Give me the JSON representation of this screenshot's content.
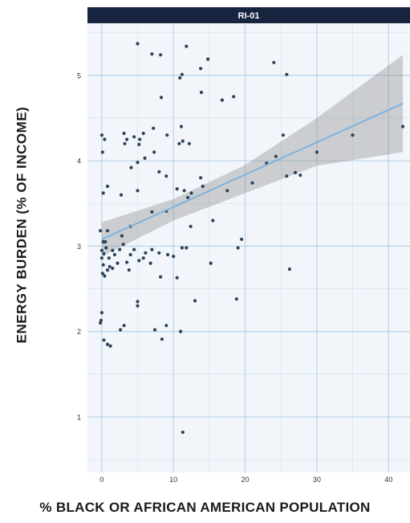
{
  "chart_data": {
    "type": "scatter",
    "facet_title": "RI-01",
    "xlabel": "% BLACK OR AFRICAN AMERICAN POPULATION",
    "ylabel": "ENERGY BURDEN (% OF INCOME)",
    "xlim": [
      -2,
      43
    ],
    "ylim": [
      0.35,
      5.6
    ],
    "x_ticks": [
      0,
      10,
      20,
      30,
      40
    ],
    "y_ticks": [
      1,
      2,
      3,
      4,
      5
    ],
    "grid": true,
    "points": [
      {
        "x": 5,
        "y": 5.37
      },
      {
        "x": 7,
        "y": 5.25
      },
      {
        "x": 8.2,
        "y": 5.24
      },
      {
        "x": 11.8,
        "y": 5.34
      },
      {
        "x": 14.8,
        "y": 5.19
      },
      {
        "x": 24,
        "y": 5.15
      },
      {
        "x": 13.8,
        "y": 5.08
      },
      {
        "x": 11.2,
        "y": 5.01
      },
      {
        "x": 10.9,
        "y": 4.97
      },
      {
        "x": 25.8,
        "y": 5.01
      },
      {
        "x": 13.9,
        "y": 4.8
      },
      {
        "x": 16.8,
        "y": 4.71
      },
      {
        "x": 18.4,
        "y": 4.75
      },
      {
        "x": 8.3,
        "y": 4.74
      },
      {
        "x": 0,
        "y": 4.3
      },
      {
        "x": 0.4,
        "y": 4.25
      },
      {
        "x": 0.1,
        "y": 4.1
      },
      {
        "x": 0.2,
        "y": 3.62
      },
      {
        "x": 0.8,
        "y": 3.7
      },
      {
        "x": 3.1,
        "y": 4.32
      },
      {
        "x": 3.5,
        "y": 4.25
      },
      {
        "x": 3.2,
        "y": 4.2
      },
      {
        "x": 4.5,
        "y": 4.28
      },
      {
        "x": 5.2,
        "y": 4.19
      },
      {
        "x": 5.3,
        "y": 4.25
      },
      {
        "x": 5.8,
        "y": 4.32
      },
      {
        "x": 7.2,
        "y": 4.38
      },
      {
        "x": 7.3,
        "y": 4.1
      },
      {
        "x": 9.1,
        "y": 4.3
      },
      {
        "x": 10.8,
        "y": 4.2
      },
      {
        "x": 11.3,
        "y": 4.23
      },
      {
        "x": 11.1,
        "y": 4.4
      },
      {
        "x": 12.2,
        "y": 4.2
      },
      {
        "x": 4.1,
        "y": 3.92
      },
      {
        "x": 5,
        "y": 3.98
      },
      {
        "x": 6,
        "y": 4.03
      },
      {
        "x": 8,
        "y": 3.87
      },
      {
        "x": 9,
        "y": 3.82
      },
      {
        "x": 13.8,
        "y": 3.8
      },
      {
        "x": 14.1,
        "y": 3.7
      },
      {
        "x": 10.5,
        "y": 3.67
      },
      {
        "x": 11.5,
        "y": 3.65
      },
      {
        "x": 12.5,
        "y": 3.62
      },
      {
        "x": 5,
        "y": 3.65
      },
      {
        "x": 2.7,
        "y": 3.6
      },
      {
        "x": 7,
        "y": 3.4
      },
      {
        "x": 9,
        "y": 3.41
      },
      {
        "x": 12,
        "y": 3.57
      },
      {
        "x": 17.5,
        "y": 3.65
      },
      {
        "x": 21,
        "y": 3.74
      },
      {
        "x": 23,
        "y": 3.97
      },
      {
        "x": 24.3,
        "y": 4.05
      },
      {
        "x": 25.3,
        "y": 4.3
      },
      {
        "x": 25.8,
        "y": 3.82
      },
      {
        "x": 27,
        "y": 3.86
      },
      {
        "x": 27.7,
        "y": 3.83
      },
      {
        "x": 30,
        "y": 4.1
      },
      {
        "x": 35,
        "y": 4.3
      },
      {
        "x": 42,
        "y": 4.4
      },
      {
        "x": 15.5,
        "y": 3.3
      },
      {
        "x": 26.2,
        "y": 2.73
      },
      {
        "x": 19.5,
        "y": 3.08
      },
      {
        "x": 19,
        "y": 2.98
      },
      {
        "x": 18.8,
        "y": 2.38
      },
      {
        "x": 15.2,
        "y": 2.8
      },
      {
        "x": 12.4,
        "y": 3.23
      },
      {
        "x": 13,
        "y": 2.36
      },
      {
        "x": 11.8,
        "y": 2.98
      },
      {
        "x": 11.2,
        "y": 2.98
      },
      {
        "x": 10,
        "y": 2.88
      },
      {
        "x": 10.5,
        "y": 2.63
      },
      {
        "x": 9.2,
        "y": 2.9
      },
      {
        "x": 8,
        "y": 2.92
      },
      {
        "x": 8.2,
        "y": 2.64
      },
      {
        "x": 7,
        "y": 2.96
      },
      {
        "x": 6.8,
        "y": 2.8
      },
      {
        "x": 6.1,
        "y": 2.92
      },
      {
        "x": 5.8,
        "y": 2.86
      },
      {
        "x": 5.2,
        "y": 2.83
      },
      {
        "x": 5,
        "y": 2.35
      },
      {
        "x": 5,
        "y": 2.3
      },
      {
        "x": 4.5,
        "y": 2.96
      },
      {
        "x": 4,
        "y": 2.9
      },
      {
        "x": 3.8,
        "y": 2.72
      },
      {
        "x": 3.5,
        "y": 2.81
      },
      {
        "x": 3,
        "y": 3.02
      },
      {
        "x": 2.8,
        "y": 3.12
      },
      {
        "x": 2.5,
        "y": 2.96
      },
      {
        "x": 2.2,
        "y": 2.8
      },
      {
        "x": 1.8,
        "y": 2.9
      },
      {
        "x": 1.5,
        "y": 2.74
      },
      {
        "x": 1.1,
        "y": 2.76
      },
      {
        "x": 1,
        "y": 2.86
      },
      {
        "x": 0.8,
        "y": 2.72
      },
      {
        "x": 0.8,
        "y": 3.18
      },
      {
        "x": 0.6,
        "y": 2.98
      },
      {
        "x": 0.5,
        "y": 3.05
      },
      {
        "x": 0.4,
        "y": 2.65
      },
      {
        "x": 0.3,
        "y": 2.91
      },
      {
        "x": 0.2,
        "y": 2.78
      },
      {
        "x": 0.1,
        "y": 2.68
      },
      {
        "x": 0,
        "y": 2.95
      },
      {
        "x": 0,
        "y": 2.86
      },
      {
        "x": -0.2,
        "y": 3.18
      },
      {
        "x": -0.2,
        "y": 2.1
      },
      {
        "x": -0.1,
        "y": 2.13
      },
      {
        "x": 0,
        "y": 2.22
      },
      {
        "x": 0.3,
        "y": 1.9
      },
      {
        "x": 0.8,
        "y": 1.85
      },
      {
        "x": 1.2,
        "y": 1.83
      },
      {
        "x": 2.6,
        "y": 2.02
      },
      {
        "x": 3.1,
        "y": 2.07
      },
      {
        "x": 7.4,
        "y": 2.02
      },
      {
        "x": 8.4,
        "y": 1.91
      },
      {
        "x": 9,
        "y": 2.07
      },
      {
        "x": 11,
        "y": 2.0
      },
      {
        "x": 11.3,
        "y": 0.82
      },
      {
        "x": 1.5,
        "y": 2.95
      },
      {
        "x": 4,
        "y": 3.23
      },
      {
        "x": 0.2,
        "y": 3.05
      }
    ],
    "fit_line": {
      "x": [
        0,
        42
      ],
      "y": [
        3.08,
        4.67
      ]
    },
    "confidence_band": {
      "x": [
        0,
        10,
        20,
        30,
        42
      ],
      "lower": [
        2.88,
        3.3,
        3.62,
        3.94,
        4.1
      ],
      "upper": [
        3.28,
        3.55,
        3.95,
        4.5,
        5.24
      ]
    },
    "colors": {
      "panel_bg": "#f2f6fa",
      "grid": "#b7d3ea",
      "point": "#2e4257",
      "line": "#7fb3df",
      "band": "#8c8c8c",
      "header_bg": "#16243f",
      "header_text": "#ffffff",
      "tick_text": "#333333"
    }
  }
}
